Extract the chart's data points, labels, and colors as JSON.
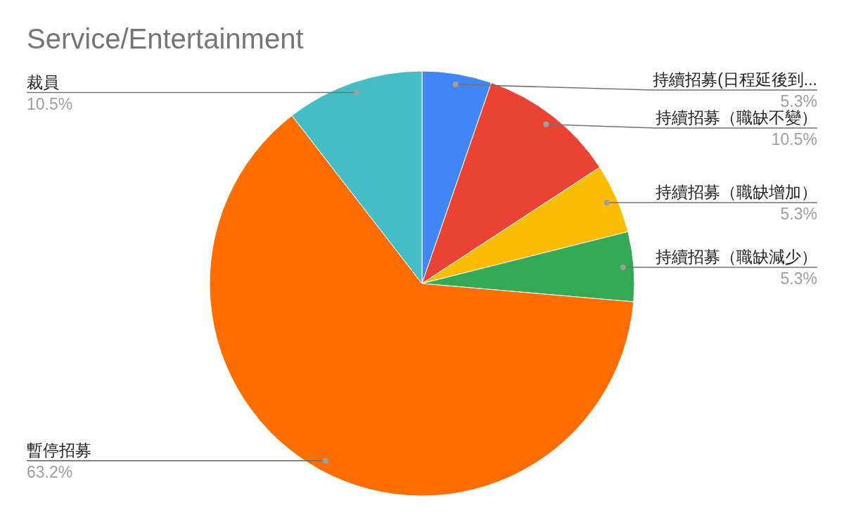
{
  "chart_data": {
    "type": "pie",
    "title": "Service/Entertainment",
    "categories": [
      "持續招募(日程延後到...",
      "持續招募（職缺不變）",
      "持續招募（職缺增加）",
      "持續招募（職缺減少）",
      "暫停招募",
      "裁員"
    ],
    "values": [
      5.3,
      10.5,
      5.3,
      5.3,
      63.2,
      10.5
    ],
    "colors": [
      "#4285f4",
      "#ea4335",
      "#fbbc04",
      "#34a853",
      "#ff6d01",
      "#46bdc6"
    ],
    "value_labels": [
      "5.3%",
      "10.5%",
      "5.3%",
      "5.3%",
      "63.2%",
      "10.5%"
    ]
  }
}
